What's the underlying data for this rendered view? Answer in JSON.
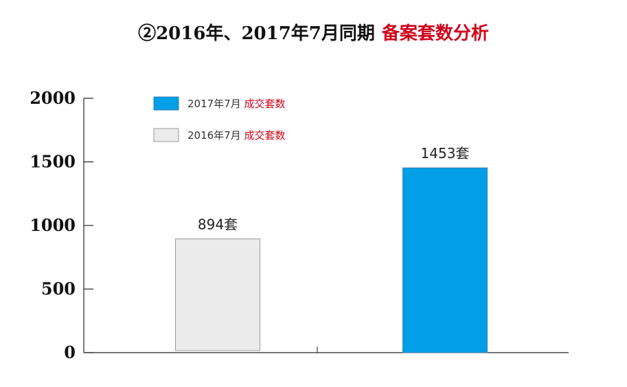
{
  "title": {
    "main": "②2016年、2017年7月同期",
    "accent": "备案套数分析"
  },
  "colors": {
    "series_2017": "#009fe8",
    "series_2016": "#ebebeb",
    "accent_text": "#d0021b",
    "axis": "#222222"
  },
  "chart_data": {
    "type": "bar",
    "ylim": [
      0,
      2000
    ],
    "yticks": [
      "0",
      "500",
      "1000",
      "1500",
      "2000"
    ],
    "categories": [
      "",
      ""
    ],
    "bars": [
      {
        "value": 894,
        "label": "894套",
        "series": "2016年7月 成交套数",
        "color": "#ebebeb"
      },
      {
        "value": 1453,
        "label": "1453套",
        "series": "2017年7月 成交套数",
        "color": "#009fe8"
      }
    ],
    "legend": {
      "placement": "top-left",
      "items": [
        {
          "prefix": "2017年7月",
          "accent": "成交套数",
          "color": "#009fe8"
        },
        {
          "prefix": "2016年7月",
          "accent": "成交套数",
          "color": "#ebebeb"
        }
      ]
    },
    "grid": false,
    "xlabel": "",
    "ylabel": ""
  }
}
